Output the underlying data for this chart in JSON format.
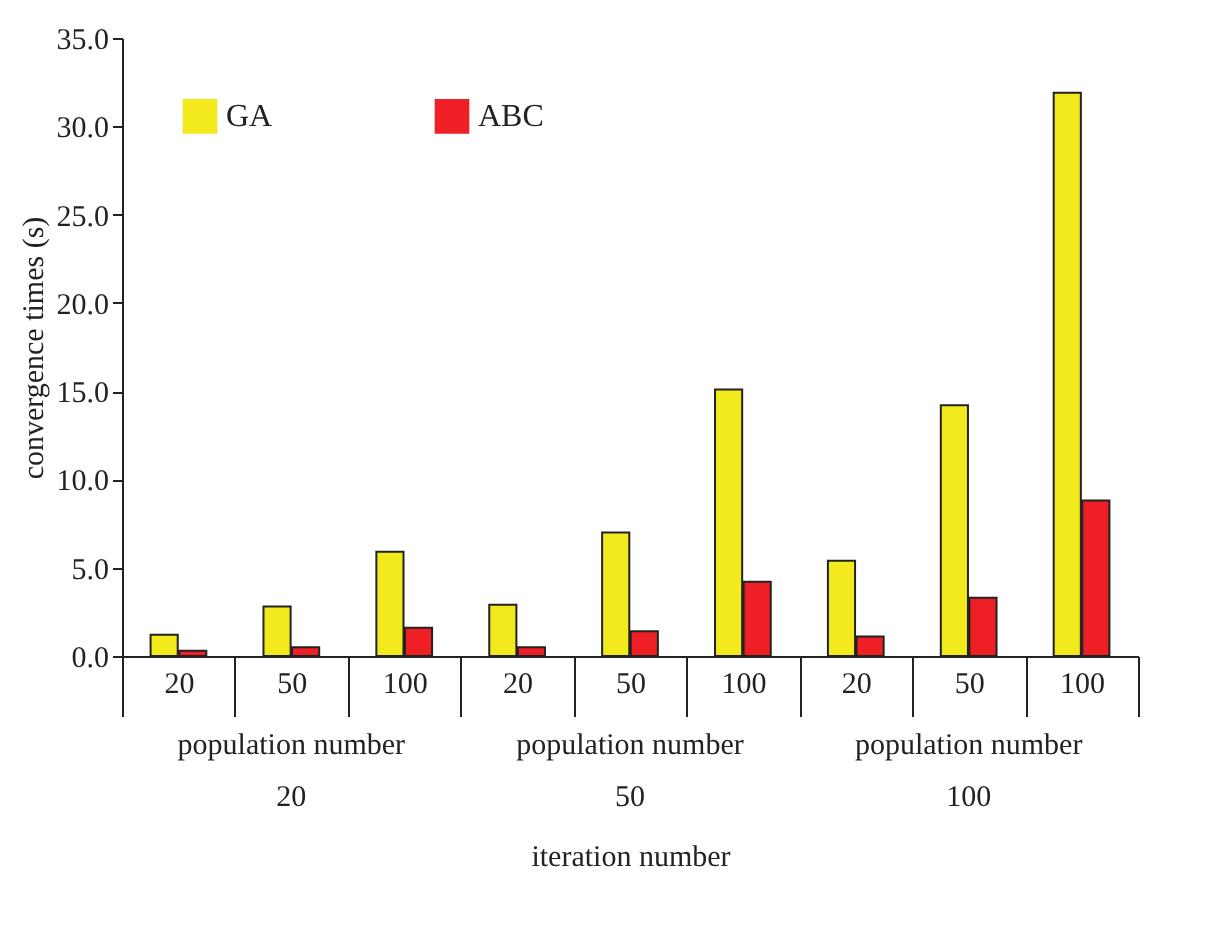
{
  "chart_data": {
    "type": "bar",
    "ylabel": "convergence times (s)",
    "xlabel": "iteration number",
    "categories": [
      "20",
      "50",
      "100",
      "20",
      "50",
      "100",
      "20",
      "50",
      "100"
    ],
    "series": [
      {
        "name": "GA",
        "color": "#f2ea1c",
        "values": [
          1.2,
          2.8,
          5.9,
          2.9,
          7.0,
          15.1,
          5.4,
          14.2,
          31.9
        ]
      },
      {
        "name": "ABC",
        "color": "#ee1f25",
        "values": [
          0.3,
          0.5,
          1.6,
          0.5,
          1.4,
          4.2,
          1.1,
          3.3,
          8.8
        ]
      }
    ],
    "ylim": [
      0,
      35
    ],
    "yticks": [
      {
        "value": 0,
        "label": "0.0"
      },
      {
        "value": 5,
        "label": "5.0"
      },
      {
        "value": 10,
        "label": "10.0"
      },
      {
        "value": 15,
        "label": "15.0"
      },
      {
        "value": 20,
        "label": "20.0"
      },
      {
        "value": 25,
        "label": "25.0"
      },
      {
        "value": 30,
        "label": "30.0"
      },
      {
        "value": 35,
        "label": "35.0"
      }
    ],
    "annotations": [
      "population number",
      "population number",
      "population number",
      "20",
      "50",
      "100"
    ],
    "legend": "top left",
    "grid": false
  }
}
